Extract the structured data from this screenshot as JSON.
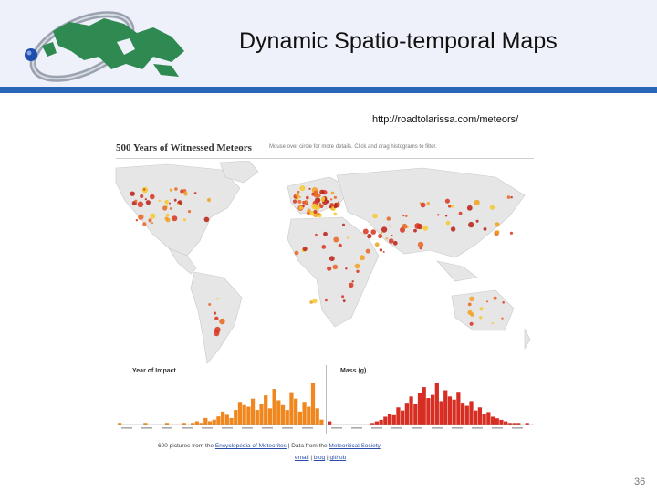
{
  "slide": {
    "title": "Dynamic Spatio-temporal Maps",
    "url": "http://roadtolarissa.com/meteors/",
    "slide_number": "36"
  },
  "viz": {
    "title": "500 Years of Witnessed Meteors",
    "subtitle": "Mouse over circle for more details. Click and drag histograms to filter.",
    "year_label": "Year of Impact",
    "mass_label": "Mass (g)",
    "year_color": "#f0871e",
    "mass_color": "#d72d23",
    "year_bars": [
      1,
      0,
      0,
      0,
      0,
      0,
      1,
      0,
      0,
      0,
      0,
      1,
      0,
      0,
      0,
      1,
      0,
      1,
      2,
      1,
      4,
      2,
      3,
      5,
      8,
      6,
      4,
      9,
      14,
      12,
      11,
      16,
      9,
      13,
      18,
      10,
      22,
      15,
      12,
      9,
      20,
      16,
      8,
      14,
      11,
      26,
      10,
      3
    ],
    "mass_bars": [
      2,
      0,
      0,
      0,
      0,
      0,
      0,
      0,
      0,
      0,
      1,
      2,
      3,
      5,
      7,
      6,
      11,
      9,
      14,
      18,
      13,
      20,
      24,
      17,
      19,
      27,
      15,
      22,
      18,
      16,
      21,
      14,
      12,
      15,
      9,
      11,
      7,
      8,
      5,
      4,
      3,
      2,
      1,
      1,
      1,
      0,
      1,
      0
    ],
    "footer_prefix": "600 pictures from the ",
    "footer_link1": "Encyclopedia of Meteorites",
    "footer_mid": " | Data from the ",
    "footer_link2": "Meteoritical Society",
    "footer_links": [
      "email",
      "blog",
      "github"
    ]
  }
}
